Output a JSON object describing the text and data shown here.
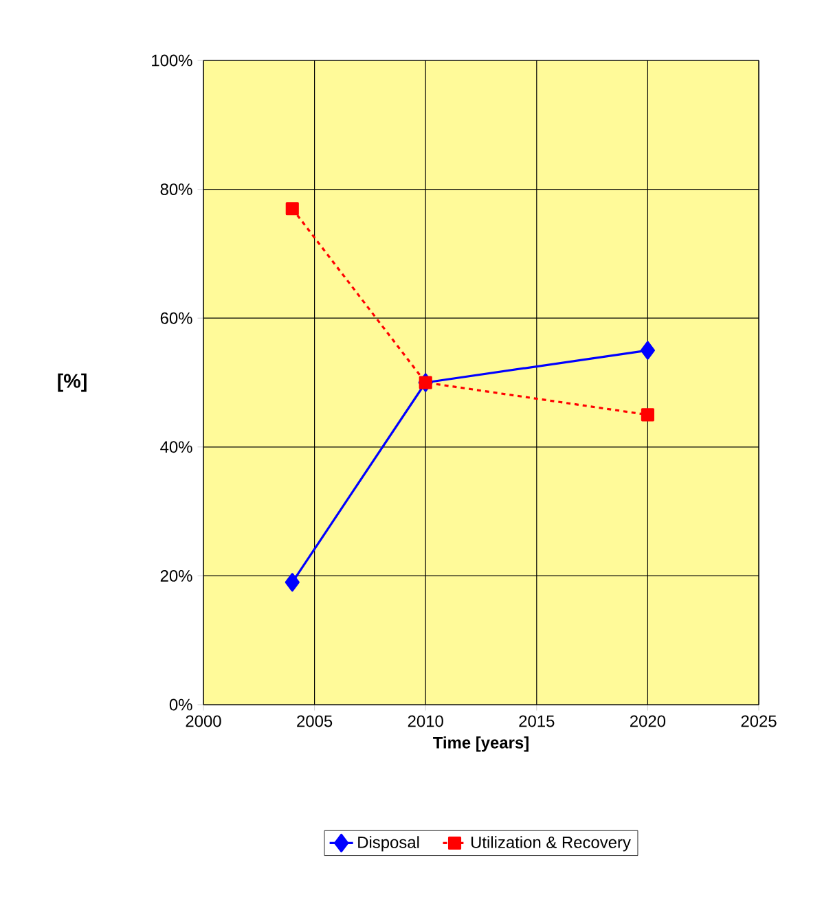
{
  "chart_data": {
    "type": "line",
    "xlabel": "Time [years]",
    "ylabel": "[%]",
    "x": [
      2004,
      2010,
      2020
    ],
    "series": [
      {
        "name": "Disposal",
        "color": "#0000ff",
        "values": [
          19,
          50,
          55
        ],
        "marker": "diamond",
        "line_style": "solid"
      },
      {
        "name": "Utilization & Recovery",
        "color": "#ff0000",
        "values": [
          77,
          50,
          45
        ],
        "marker": "square",
        "line_style": "dashed"
      }
    ],
    "xlim": [
      2000,
      2025
    ],
    "xticks": [
      2000,
      2005,
      2010,
      2015,
      2020,
      2025
    ],
    "ylim": [
      0,
      100
    ],
    "yticks": [
      {
        "value": 0,
        "label": "0%"
      },
      {
        "value": 20,
        "label": "20%"
      },
      {
        "value": 40,
        "label": "40%"
      },
      {
        "value": 60,
        "label": "60%"
      },
      {
        "value": 80,
        "label": "80%"
      },
      {
        "value": 100,
        "label": "100%"
      }
    ],
    "grid": true,
    "legend": "bottom"
  }
}
